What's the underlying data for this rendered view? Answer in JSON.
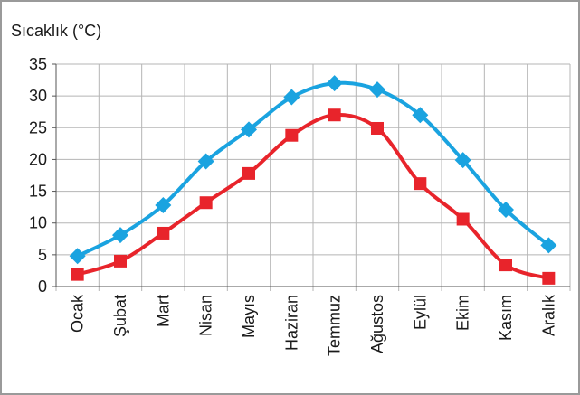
{
  "chart_data": {
    "type": "line",
    "y_label": "Sıcaklık (°C)",
    "categories": [
      "Ocak",
      "Şubat",
      "Mart",
      "Nisan",
      "Mayıs",
      "Haziran",
      "Temmuz",
      "Ağustos",
      "Eylül",
      "Ekim",
      "Kasım",
      "Aralık"
    ],
    "series": [
      {
        "color": "#1aa3e0",
        "marker": "diamond",
        "values": [
          4.8,
          8.1,
          12.8,
          19.7,
          24.7,
          29.8,
          32,
          31,
          27,
          19.9,
          12.1,
          6.5
        ]
      },
      {
        "color": "#e8242b",
        "marker": "square",
        "values": [
          1.9,
          4,
          8.4,
          13.2,
          17.8,
          23.8,
          27,
          24.9,
          16.2,
          10.6,
          3.4,
          1.3
        ]
      }
    ],
    "ylim": [
      0,
      35
    ],
    "yticks": [
      0,
      5,
      10,
      15,
      20,
      25,
      30,
      35
    ],
    "grid": true,
    "smooth": true
  }
}
